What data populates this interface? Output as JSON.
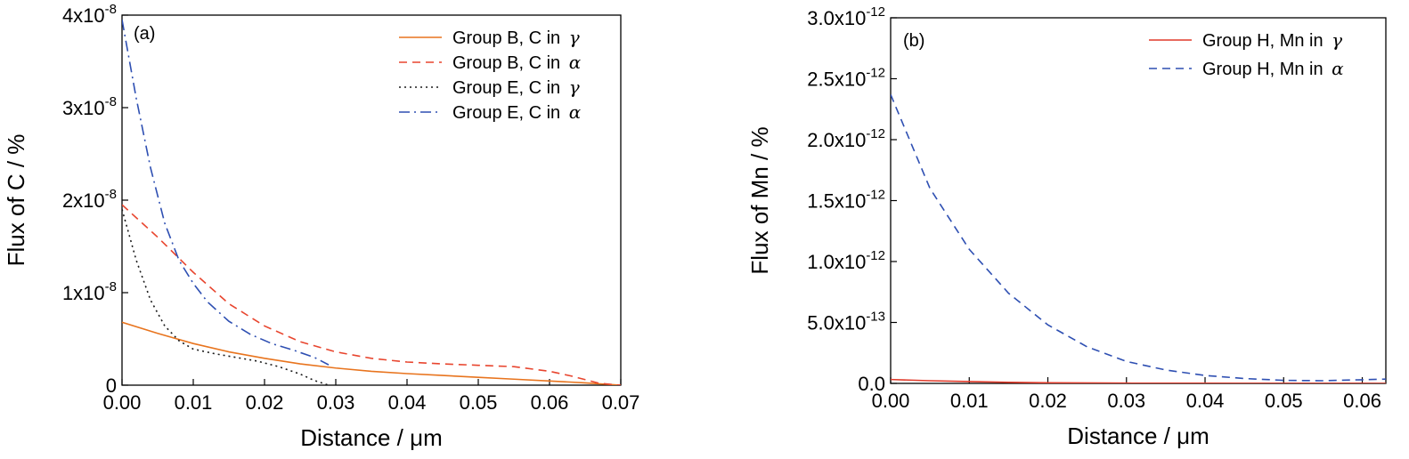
{
  "chart_data": [
    {
      "type": "line",
      "panel_label": "(a)",
      "xlabel": "Distance / μm",
      "ylabel": "Flux of C / %",
      "xlim": [
        0,
        0.07
      ],
      "ylim": [
        0,
        4e-08
      ],
      "x_ticks": [
        "0.00",
        "0.01",
        "0.02",
        "0.03",
        "0.04",
        "0.05",
        "0.06",
        "0.07"
      ],
      "y_ticks": [
        {
          "base": "0",
          "exp": ""
        },
        {
          "base": "1x10",
          "exp": "-8"
        },
        {
          "base": "2x10",
          "exp": "-8"
        },
        {
          "base": "3x10",
          "exp": "-8"
        },
        {
          "base": "4x10",
          "exp": "-8"
        }
      ],
      "legend_position": "top-right",
      "series": [
        {
          "name": "Group B, C in ",
          "greek": "γ",
          "color": "#e8741e",
          "style": "solid",
          "x": [
            0,
            0.005,
            0.01,
            0.015,
            0.02,
            0.025,
            0.03,
            0.035,
            0.04,
            0.045,
            0.05,
            0.055,
            0.06,
            0.065,
            0.07
          ],
          "y": [
            6.8e-09,
            5.6e-09,
            4.5e-09,
            3.6e-09,
            2.9e-09,
            2.3e-09,
            1.85e-09,
            1.5e-09,
            1.25e-09,
            1.05e-09,
            8.5e-10,
            6.5e-10,
            4.5e-10,
            2.5e-10,
            0
          ]
        },
        {
          "name": "Group B, C in ",
          "greek": "α",
          "color": "#e8452e",
          "style": "dashed",
          "x": [
            0,
            0.005,
            0.01,
            0.015,
            0.02,
            0.025,
            0.03,
            0.035,
            0.04,
            0.045,
            0.05,
            0.055,
            0.06,
            0.063,
            0.065,
            0.067,
            0.07
          ],
          "y": [
            1.95e-08,
            1.6e-08,
            1.22e-08,
            8.8e-09,
            6.4e-09,
            4.7e-09,
            3.6e-09,
            2.9e-09,
            2.5e-09,
            2.3e-09,
            2.15e-09,
            2e-09,
            1.5e-09,
            1e-09,
            6e-10,
            2e-10,
            0
          ]
        },
        {
          "name": "Group E, C in ",
          "greek": "γ",
          "color": "#1a1a1a",
          "style": "dotted",
          "x": [
            0,
            0.002,
            0.004,
            0.006,
            0.008,
            0.01,
            0.013,
            0.016,
            0.019,
            0.022,
            0.025,
            0.027,
            0.029
          ],
          "y": [
            1.9e-08,
            1.35e-08,
            9.2e-09,
            6.4e-09,
            4.8e-09,
            3.9e-09,
            3.4e-09,
            3e-09,
            2.6e-09,
            2e-09,
            1.2e-09,
            5e-10,
            0
          ]
        },
        {
          "name": "Group E, C in ",
          "greek": "α",
          "color": "#2e4fb2",
          "style": "dashdot",
          "x": [
            0,
            0.002,
            0.004,
            0.006,
            0.008,
            0.01,
            0.012,
            0.015,
            0.018,
            0.021,
            0.024,
            0.027,
            0.029
          ],
          "y": [
            3.95e-08,
            3.1e-08,
            2.35e-08,
            1.75e-08,
            1.35e-08,
            1.1e-08,
            9e-09,
            6.9e-09,
            5.5e-09,
            4.5e-09,
            3.8e-09,
            3e-09,
            2.2e-09
          ]
        }
      ]
    },
    {
      "type": "line",
      "panel_label": "(b)",
      "xlabel": "Distance / μm",
      "ylabel": "Flux of Mn / %",
      "xlim": [
        0,
        0.063
      ],
      "ylim": [
        0,
        3e-12
      ],
      "x_ticks": [
        "0.00",
        "0.01",
        "0.02",
        "0.03",
        "0.04",
        "0.05",
        "0.06"
      ],
      "y_ticks": [
        {
          "base": "0.0",
          "exp": ""
        },
        {
          "base": "5.0x10",
          "exp": "-13"
        },
        {
          "base": "1.0x10",
          "exp": "-12"
        },
        {
          "base": "1.5x10",
          "exp": "-12"
        },
        {
          "base": "2.0x10",
          "exp": "-12"
        },
        {
          "base": "2.5x10",
          "exp": "-12"
        },
        {
          "base": "3.0x10",
          "exp": "-12"
        }
      ],
      "legend_position": "top-right",
      "series": [
        {
          "name": "Group H, Mn in ",
          "greek": "γ",
          "color": "#e03a2a",
          "style": "solid",
          "x": [
            0,
            0.005,
            0.01,
            0.015,
            0.02,
            0.03,
            0.04,
            0.05,
            0.063
          ],
          "y": [
            3.2e-14,
            2.2e-14,
            1.5e-14,
            9e-15,
            5e-15,
            2e-15,
            1e-15,
            5e-16,
            0
          ]
        },
        {
          "name": "Group H, Mn in ",
          "greek": "α",
          "color": "#2e4fb2",
          "style": "dashed",
          "x": [
            0,
            0.005,
            0.01,
            0.015,
            0.02,
            0.025,
            0.03,
            0.035,
            0.04,
            0.045,
            0.05,
            0.055,
            0.06,
            0.063
          ],
          "y": [
            2.37e-12,
            1.6e-12,
            1.1e-12,
            7.4e-13,
            4.8e-13,
            3e-13,
            1.8e-13,
            1.1e-13,
            6.5e-14,
            4e-14,
            2.5e-14,
            2.2e-14,
            3e-14,
            3.5e-14
          ]
        }
      ]
    }
  ]
}
